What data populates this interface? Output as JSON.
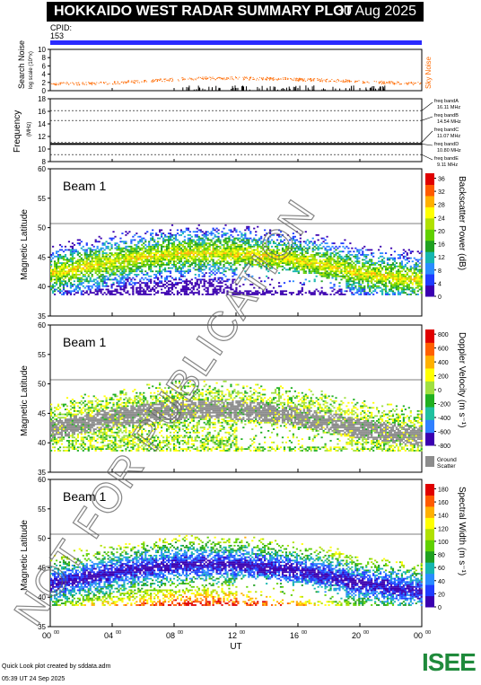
{
  "title": "HOKKAIDO WEST RADAR SUMMARY PLOT",
  "date": "30 Aug 2025",
  "cpid_label": "CPID:",
  "cpid_value": "153",
  "footer_line1": "Quick Look plot created by sddata.adm",
  "footer_line2": "05:39 UT 24 Sep 2025",
  "logo_text": "ISEE",
  "watermark": "NOT FOR PUBLICATION",
  "colors": {
    "cpid_bar": "#2a2aff",
    "noise": "#ff6a00",
    "title_bg": "#000000"
  },
  "chart_data": [
    {
      "type": "scatter",
      "name": "noise-panel",
      "ylabel": "Search Noise",
      "ylabel_sub": "log scale (10^x)",
      "right_label": "Sky Noise",
      "ylim": [
        0,
        10
      ],
      "yticks": [
        "0",
        "2",
        "4",
        "6",
        "8",
        "10"
      ],
      "noise_curve": [
        [
          0,
          1.8
        ],
        [
          2,
          1.8
        ],
        [
          4,
          2.0
        ],
        [
          6,
          2.4
        ],
        [
          8,
          2.8
        ],
        [
          10,
          3.1
        ],
        [
          12,
          3.1
        ],
        [
          14,
          3.0
        ],
        [
          16,
          2.8
        ],
        [
          18,
          2.6
        ],
        [
          20,
          2.3
        ],
        [
          22,
          2.0
        ],
        [
          24,
          1.8
        ]
      ]
    },
    {
      "type": "line",
      "name": "frequency-panel",
      "ylabel": "Frequency",
      "ylabel_sub": "(MHz)",
      "ylim": [
        8,
        18
      ],
      "yticks": [
        "8",
        "10",
        "12",
        "14",
        "16",
        "18"
      ],
      "bands": [
        {
          "label": "freq bandA",
          "value": "16.11 MHz",
          "f": 16.11,
          "active": false
        },
        {
          "label": "freq bandB",
          "value": "14.54 MHz",
          "f": 14.54,
          "active": false
        },
        {
          "label": "freq bandC",
          "value": "11.07 MHz",
          "f": 11.07,
          "active": false
        },
        {
          "label": "freq bandD",
          "value": "10.80 MHz",
          "f": 10.8,
          "active": true
        },
        {
          "label": "freq bandE",
          "value": "9.11 MHz",
          "f": 9.11,
          "active": false
        }
      ]
    },
    {
      "type": "heatmap",
      "name": "power-panel",
      "beam_label": "Beam  1",
      "ylabel": "Magnetic Latitude",
      "ylim": [
        35,
        60
      ],
      "yticks": [
        "35",
        "40",
        "45",
        "50",
        "55",
        "60"
      ],
      "colorbar_label": "Backscatter Power (dB)",
      "colorbar_ticks": [
        "0",
        "4",
        "8",
        "12",
        "16",
        "20",
        "24",
        "28",
        "32",
        "36"
      ]
    },
    {
      "type": "heatmap",
      "name": "velocity-panel",
      "beam_label": "Beam  1",
      "ylabel": "Magnetic Latitude",
      "ylim": [
        35,
        60
      ],
      "yticks": [
        "35",
        "40",
        "45",
        "50",
        "55",
        "60"
      ],
      "colorbar_label": "Doppler Velocity (m s⁻¹)",
      "colorbar_ticks": [
        "-800",
        "-600",
        "-400",
        "-200",
        "0",
        "200",
        "400",
        "600",
        "800"
      ],
      "ground_scatter_label": "Ground Scatter"
    },
    {
      "type": "heatmap",
      "name": "width-panel",
      "beam_label": "Beam  1",
      "ylabel": "Magnetic Latitude",
      "ylim": [
        35,
        60
      ],
      "yticks": [
        "35",
        "40",
        "45",
        "50",
        "55",
        "60"
      ],
      "colorbar_label": "Spectral Width (m s⁻¹)",
      "colorbar_ticks": [
        "0",
        "20",
        "40",
        "60",
        "80",
        "100",
        "120",
        "140",
        "160",
        "180"
      ]
    }
  ],
  "x_axis": {
    "label": "UT",
    "ticks": [
      {
        "h": "00",
        "m": "00"
      },
      {
        "h": "04",
        "m": "00"
      },
      {
        "h": "08",
        "m": "00"
      },
      {
        "h": "12",
        "m": "00"
      },
      {
        "h": "16",
        "m": "00"
      },
      {
        "h": "20",
        "m": "00"
      },
      {
        "h": "00",
        "m": "00"
      }
    ]
  }
}
